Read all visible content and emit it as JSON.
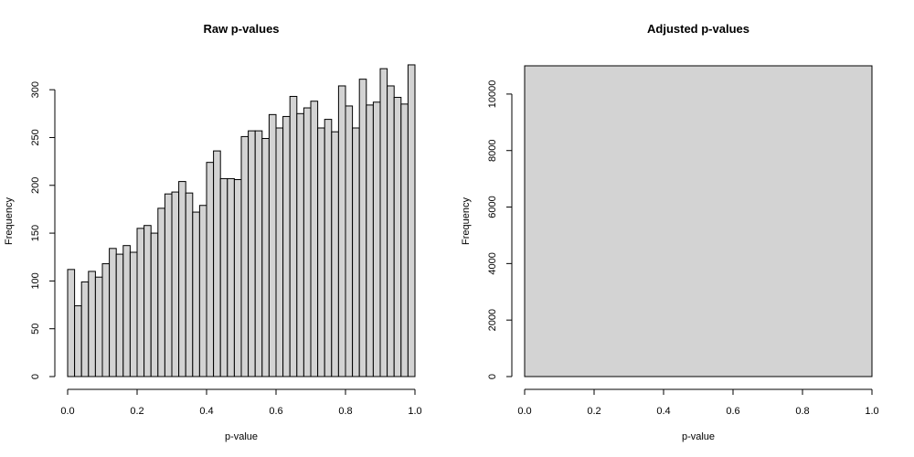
{
  "chart_data": [
    {
      "type": "bar",
      "title": "Raw p-values",
      "xlabel": "p-value",
      "ylabel": "Frequency",
      "xlim": [
        0,
        1
      ],
      "ylim": [
        0,
        325
      ],
      "x_ticks": [
        "0.0",
        "0.2",
        "0.4",
        "0.6",
        "0.8",
        "1.0"
      ],
      "y_ticks": [
        "0",
        "50",
        "100",
        "150",
        "200",
        "250",
        "300"
      ],
      "bin_width": 0.02,
      "bins": [
        0.0,
        0.02,
        0.04,
        0.06,
        0.08,
        0.1,
        0.12,
        0.14,
        0.16,
        0.18,
        0.2,
        0.22,
        0.24,
        0.26,
        0.28,
        0.3,
        0.32,
        0.34,
        0.36,
        0.38,
        0.4,
        0.42,
        0.44,
        0.46,
        0.48,
        0.5,
        0.52,
        0.54,
        0.56,
        0.58,
        0.6,
        0.62,
        0.64,
        0.66,
        0.68,
        0.7,
        0.72,
        0.74,
        0.76,
        0.78,
        0.8,
        0.82,
        0.84,
        0.86,
        0.88,
        0.9,
        0.92,
        0.94,
        0.96,
        0.98
      ],
      "values": [
        112,
        74,
        99,
        110,
        104,
        118,
        134,
        128,
        137,
        130,
        155,
        158,
        150,
        176,
        191,
        193,
        204,
        192,
        172,
        179,
        224,
        236,
        207,
        207,
        206,
        251,
        257,
        257,
        249,
        274,
        260,
        272,
        293,
        275,
        281,
        288,
        260,
        269,
        256,
        304,
        283,
        260,
        311,
        284,
        287,
        322,
        304,
        292,
        285,
        326
      ],
      "grid": false
    },
    {
      "type": "bar",
      "title": "Adjusted p-values",
      "xlabel": "p-value",
      "ylabel": "Frequency",
      "xlim": [
        0,
        1
      ],
      "ylim": [
        0,
        11000
      ],
      "x_ticks": [
        "0.0",
        "0.2",
        "0.4",
        "0.6",
        "0.8",
        "1.0"
      ],
      "y_ticks": [
        "0",
        "2000",
        "4000",
        "6000",
        "8000",
        "10000"
      ],
      "bin_width": 1.0,
      "bins": [
        0.0
      ],
      "values": [
        11000
      ],
      "grid": false
    }
  ]
}
